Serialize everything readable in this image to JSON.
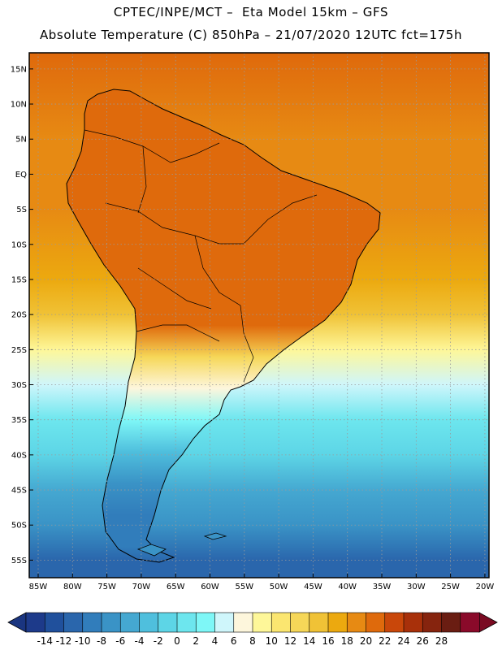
{
  "header": {
    "line1": "CPTEC/INPE/MCT –  Eta Model 15km – GFS",
    "line2": "Absolute Temperature (C) 850hPa – 21/07/2020 12UTC fct=175h"
  },
  "map": {
    "lat_labels": [
      "15N",
      "10N",
      "5N",
      "EQ",
      "5S",
      "10S",
      "15S",
      "20S",
      "25S",
      "30S",
      "35S",
      "40S",
      "45S",
      "50S",
      "55S"
    ],
    "lon_labels": [
      "85W",
      "80W",
      "75W",
      "70W",
      "65W",
      "60W",
      "55W",
      "50W",
      "45W",
      "40W",
      "35W",
      "30W",
      "25W",
      "20W"
    ],
    "lat_range": [
      15,
      -55
    ],
    "lon_range": [
      -85,
      -20
    ],
    "bands_temperature_c": [
      {
        "lat": 17,
        "ocean": 20,
        "land": 20
      },
      {
        "lat": 5,
        "ocean": 19.5,
        "land": 21
      },
      {
        "lat": -5,
        "ocean": 19,
        "land": 21
      },
      {
        "lat": -15,
        "ocean": 17,
        "land": 21.5
      },
      {
        "lat": -20,
        "ocean": 14,
        "land": 20
      },
      {
        "lat": -25,
        "ocean": 9,
        "land": 12
      },
      {
        "lat": -30,
        "ocean": 5,
        "land": 7
      },
      {
        "lat": -35,
        "ocean": 1,
        "land": 2
      },
      {
        "lat": -40,
        "ocean": -2,
        "land": -3
      },
      {
        "lat": -45,
        "ocean": -5,
        "land": -7
      },
      {
        "lat": -50,
        "ocean": -8,
        "land": -9
      },
      {
        "lat": -55,
        "ocean": -11,
        "land": -10
      },
      {
        "lat": -58,
        "ocean": -12,
        "land": -12
      }
    ]
  },
  "colorbar": {
    "labels": [
      "-14",
      "-12",
      "-10",
      "-8",
      "-6",
      "-4",
      "-2",
      "0",
      "2",
      "4",
      "6",
      "8",
      "10",
      "12",
      "14",
      "16",
      "18",
      "20",
      "22",
      "24",
      "26",
      "28"
    ],
    "colors": [
      "#1d3a8a",
      "#20509c",
      "#2a66ac",
      "#317dbb",
      "#3a93c6",
      "#45a8d1",
      "#4fbfdd",
      "#5dd5e6",
      "#6de6ee",
      "#7ef7f7",
      "#cff6fb",
      "#fdf6dc",
      "#fef799",
      "#fbe670",
      "#f6d758",
      "#f0c236",
      "#eca90f",
      "#e78a13",
      "#df6a0c",
      "#c9470a",
      "#a8300a",
      "#86240e",
      "#6a1d12",
      "#8a0a2a"
    ],
    "under_color": "#1a3580",
    "over_color": "#7a0a22"
  }
}
